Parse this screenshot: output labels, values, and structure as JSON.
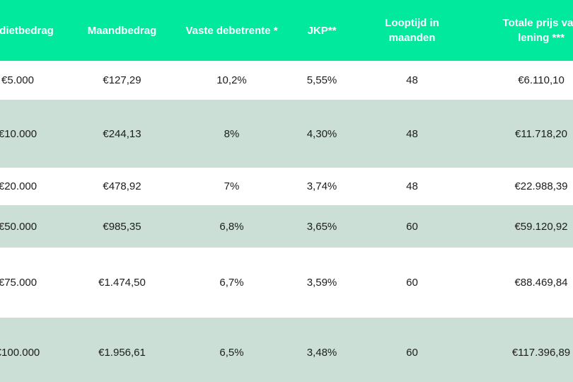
{
  "chart_data": {
    "type": "table",
    "columns": [
      "Kredietbedrag",
      "Maandbedrag",
      "Vaste debetrente *",
      "JKP**",
      "Looptijd in maanden",
      "Totale prijs van lening ***"
    ],
    "rows": [
      [
        "€5.000",
        "€127,29",
        "10,2%",
        "5,55%",
        "48",
        "€6.110,10"
      ],
      [
        "€10.000",
        "€244,13",
        "8%",
        "4,30%",
        "48",
        "€11.718,20"
      ],
      [
        "€20.000",
        "€478,92",
        "7%",
        "3,74%",
        "48",
        "€22.988,39"
      ],
      [
        "€50.000",
        "€985,35",
        "6,8%",
        "3,65%",
        "60",
        "€59.120,92"
      ],
      [
        "€75.000",
        "€1.474,50",
        "6,7%",
        "3,59%",
        "60",
        "€88.469,84"
      ],
      [
        "€100.000",
        "€1.956,61",
        "6,5%",
        "3,48%",
        "60",
        "€117.396,89"
      ]
    ],
    "layout_hints": {
      "header_position": "top",
      "row_striping": "alternate rows light green starting at row 2",
      "grid": "off",
      "crop": "table cropped at left and right edges of viewport"
    }
  },
  "colors": {
    "header_bg": "#00e99c",
    "row_alt_bg": "#cbdfd6",
    "row_bg": "#ffffff",
    "header_text": "#ffffff",
    "cell_text": "#1d1d1b"
  }
}
